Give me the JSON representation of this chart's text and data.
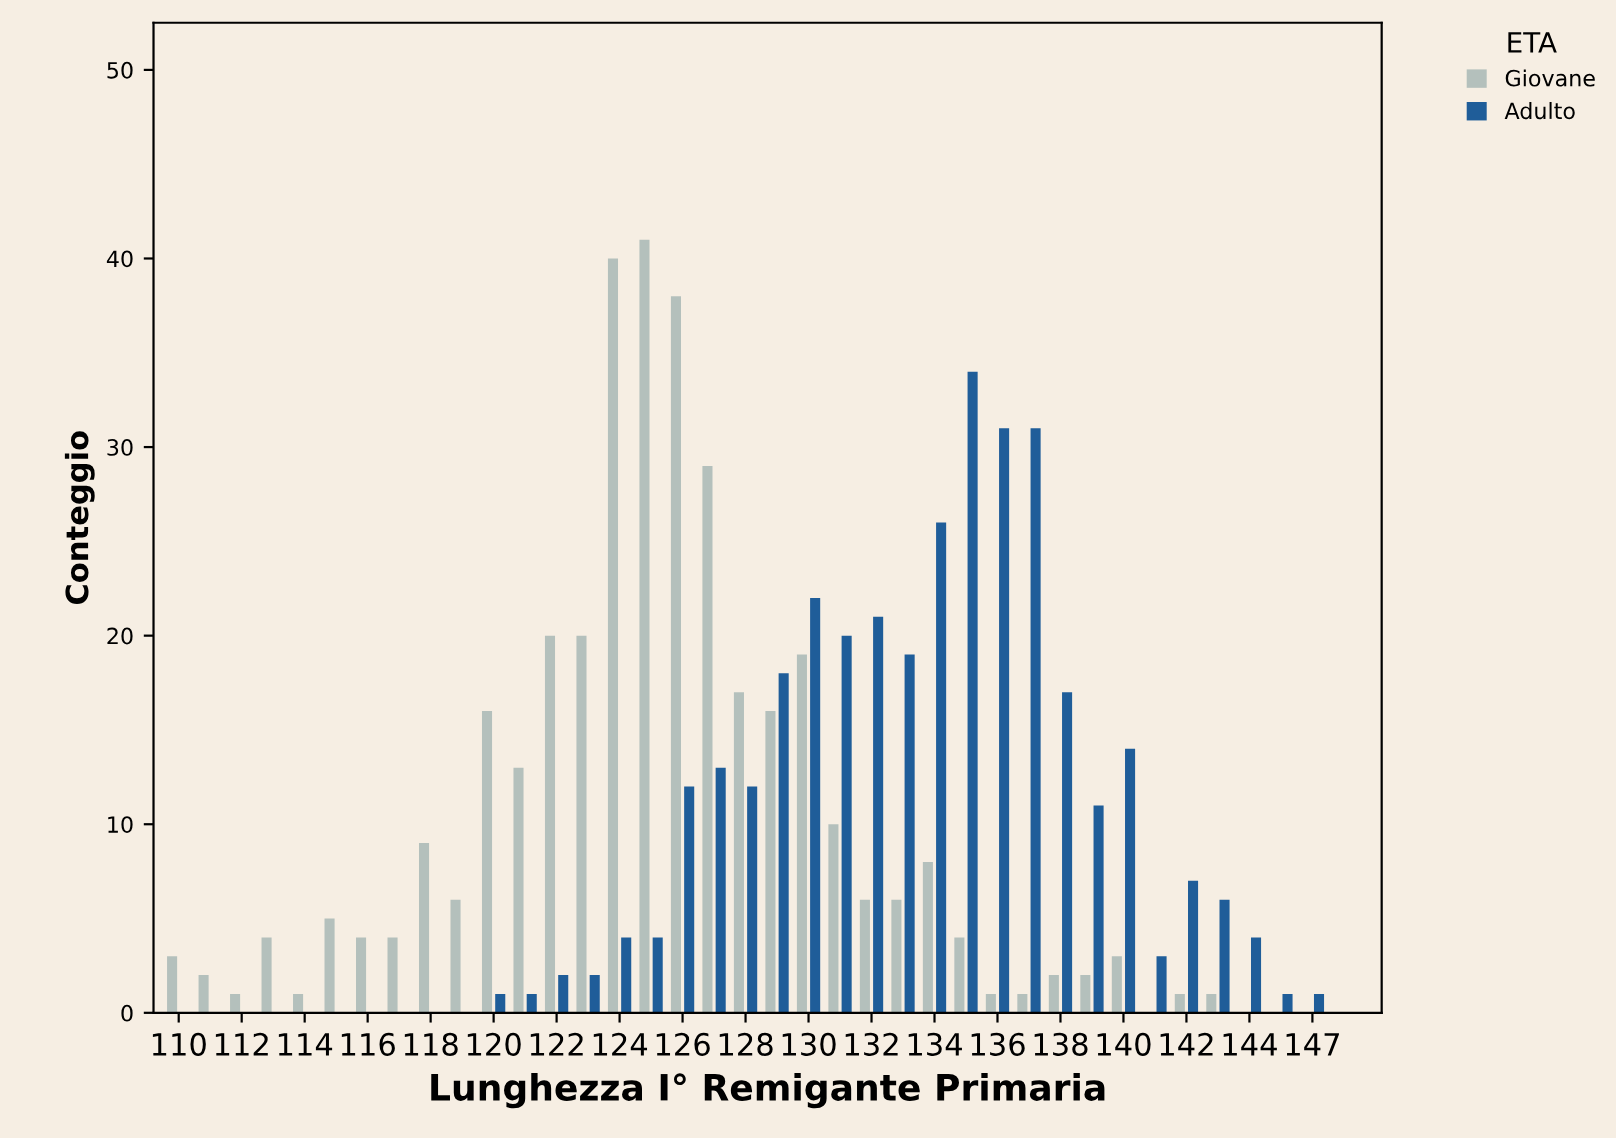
{
  "chart_data": {
    "type": "bar",
    "xlabel": "Lunghezza I° Remigante Primaria",
    "ylabel": "Conteggio",
    "legend_title": "ETA",
    "categories": [
      "110",
      null,
      "112",
      null,
      "114",
      null,
      "116",
      null,
      "118",
      null,
      "120",
      null,
      "122",
      null,
      "124",
      null,
      "126",
      null,
      "128",
      null,
      "130",
      null,
      "132",
      null,
      "134",
      null,
      "136",
      null,
      "138",
      null,
      "140",
      null,
      "142",
      null,
      "144",
      null,
      "147"
    ],
    "series": [
      {
        "name": "Giovane",
        "color": "#b4c0bc",
        "values": [
          3,
          2,
          1,
          4,
          1,
          5,
          4,
          4,
          9,
          6,
          16,
          13,
          20,
          20,
          40,
          41,
          38,
          29,
          17,
          16,
          19,
          10,
          6,
          6,
          8,
          4,
          1,
          1,
          2,
          2,
          3,
          0,
          1,
          1,
          0,
          0,
          0
        ]
      },
      {
        "name": "Adulto",
        "color": "#1f5d99",
        "values": [
          0,
          0,
          0,
          0,
          0,
          0,
          0,
          0,
          0,
          0,
          1,
          1,
          2,
          2,
          4,
          4,
          12,
          13,
          12,
          18,
          22,
          20,
          21,
          19,
          26,
          34,
          31,
          31,
          17,
          11,
          14,
          3,
          7,
          6,
          4,
          1,
          1
        ]
      }
    ],
    "ylim": [
      0,
      52.5
    ],
    "yticks": [
      0,
      10,
      20,
      30,
      40,
      50
    ],
    "grid": false,
    "legend": "top right"
  }
}
